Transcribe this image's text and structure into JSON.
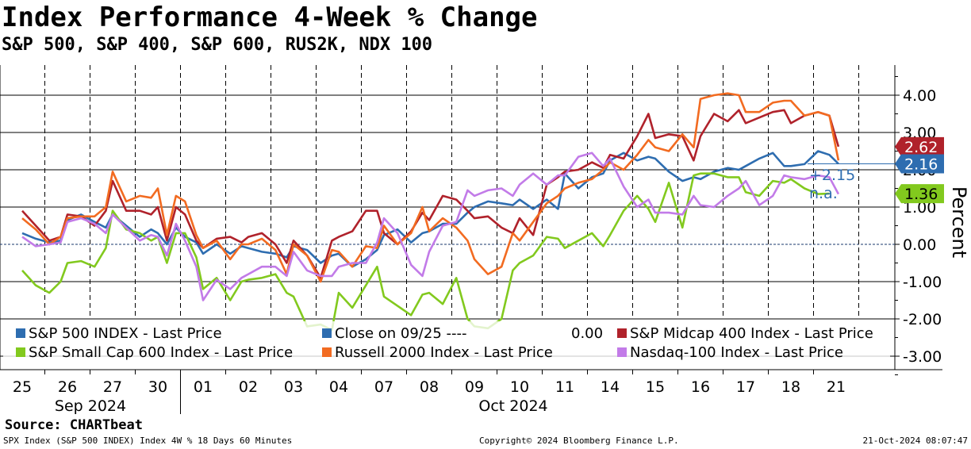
{
  "title": "Index Performance 4-Week % Change",
  "subtitle": "S&P 500, S&P 400, S&P 600, RUS2K, NDX 100",
  "source": "Source: CHARTbeat",
  "footer": {
    "left": "SPX Index (S&P 500 INDEX) Index 4W % 18 Days 60 Minutes",
    "center": "Copyright© 2024 Bloomberg Finance L.P.",
    "right": "21-Oct-2024 08:07:47"
  },
  "chart_data": {
    "type": "line",
    "ylabel": "Percent",
    "ylim": [
      -3.3,
      4.5
    ],
    "yticks": [
      -3,
      -2,
      -1,
      0,
      1,
      2,
      3,
      4
    ],
    "ytick_labels": [
      "-3.00",
      "-2.00",
      "-1.00",
      "0.00",
      "1.00",
      "2.00",
      "3.00",
      "4.00"
    ],
    "x_day_labels": [
      "25",
      "26",
      "27",
      "30",
      "01",
      "02",
      "03",
      "04",
      "07",
      "08",
      "09",
      "10",
      "11",
      "14",
      "15",
      "16",
      "17",
      "18",
      "21"
    ],
    "x_month_labels": [
      "Sep 2024",
      "Oct 2024"
    ],
    "grid": true,
    "legend_position": "bottom",
    "reference_line": {
      "label": "Close on 09/25 ----",
      "value": 0.0,
      "value_label": "0.00"
    },
    "annotations": [
      {
        "text": "+2.15",
        "color": "#2e6db0"
      },
      {
        "text": "n.a.",
        "color": "#2e6db0"
      }
    ],
    "last_value_tags": [
      {
        "text": "2.62",
        "value": 2.62,
        "color": "#b0222b"
      },
      {
        "text": "2.16",
        "value": 2.16,
        "color": "#2e6db0"
      },
      {
        "text": "1.36",
        "value": 1.36,
        "color": "#82c91e"
      }
    ],
    "series": [
      {
        "name": "S&P 500 INDEX - Last Price",
        "color": "#2e6db0",
        "x": [
          0,
          0.3,
          0.6,
          0.85,
          1,
          1.3,
          1.6,
          1.85,
          2,
          2.3,
          2.6,
          2.85,
          3,
          3.2,
          3.4,
          3.6,
          3.85,
          4,
          4.3,
          4.6,
          4.85,
          5,
          5.3,
          5.6,
          5.85,
          6,
          6.3,
          6.6,
          6.85,
          7,
          7.3,
          7.6,
          7.85,
          8,
          8.3,
          8.6,
          8.85,
          9,
          9.3,
          9.6,
          9.85,
          10,
          10.3,
          10.6,
          10.85,
          11,
          11.3,
          11.6,
          11.85,
          12,
          12.3,
          12.6,
          12.85,
          13,
          13.3,
          13.6,
          13.85,
          14,
          14.3,
          14.6,
          14.85,
          15,
          15.3,
          15.6,
          15.85,
          16,
          16.3,
          16.6,
          16.85,
          17,
          17.3,
          17.6,
          17.85,
          18.05
        ],
        "values": [
          0.3,
          0.15,
          0.05,
          0.1,
          0.65,
          0.8,
          0.6,
          0.45,
          0.8,
          0.5,
          0.2,
          0.4,
          0.3,
          0.0,
          0.45,
          0.2,
          0.05,
          -0.25,
          0.0,
          -0.25,
          -0.05,
          -0.1,
          -0.2,
          -0.25,
          -0.35,
          -0.05,
          -0.15,
          -0.5,
          -0.3,
          -0.25,
          -0.6,
          -0.4,
          -0.15,
          0.25,
          0.4,
          0.05,
          0.3,
          0.35,
          0.55,
          0.55,
          0.85,
          1.0,
          1.15,
          1.1,
          1.05,
          1.2,
          0.95,
          1.2,
          0.95,
          1.9,
          1.5,
          1.8,
          1.9,
          2.25,
          2.45,
          2.25,
          2.35,
          2.3,
          1.95,
          1.7,
          1.8,
          1.75,
          1.95,
          2.05,
          2.0,
          2.1,
          2.3,
          2.45,
          2.1,
          2.1,
          2.15,
          2.5,
          2.4,
          2.16
        ]
      },
      {
        "name": "S&P Midcap 400 Index - Last Price",
        "color": "#b0222b",
        "x": [
          0,
          0.3,
          0.6,
          0.85,
          1,
          1.3,
          1.6,
          1.85,
          2,
          2.3,
          2.6,
          2.85,
          3,
          3.2,
          3.4,
          3.6,
          3.85,
          4,
          4.3,
          4.6,
          4.85,
          5,
          5.3,
          5.6,
          5.85,
          6,
          6.3,
          6.6,
          6.85,
          7,
          7.3,
          7.6,
          7.85,
          8,
          8.3,
          8.6,
          8.85,
          9,
          9.3,
          9.6,
          9.85,
          10,
          10.3,
          10.6,
          10.85,
          11,
          11.3,
          11.6,
          11.85,
          12,
          12.3,
          12.6,
          12.85,
          13,
          13.3,
          13.6,
          13.85,
          14,
          14.3,
          14.6,
          14.85,
          15,
          15.3,
          15.6,
          15.85,
          16,
          16.3,
          16.6,
          16.85,
          17,
          17.3,
          17.6,
          17.85,
          18.05
        ],
        "values": [
          0.9,
          0.5,
          0.1,
          0.2,
          0.8,
          0.75,
          0.5,
          0.9,
          1.7,
          0.9,
          0.9,
          0.8,
          1.0,
          0.1,
          1.0,
          0.8,
          0.1,
          -0.1,
          0.15,
          0.2,
          0.05,
          0.2,
          0.3,
          0.0,
          -0.5,
          0.1,
          -0.3,
          -0.9,
          0.1,
          0.2,
          0.35,
          0.9,
          0.9,
          0.3,
          0.0,
          0.35,
          0.85,
          0.65,
          1.3,
          1.2,
          0.9,
          0.7,
          0.75,
          0.45,
          0.3,
          0.7,
          0.25,
          1.6,
          1.8,
          1.95,
          2.0,
          2.2,
          2.05,
          2.4,
          2.3,
          2.9,
          3.5,
          2.85,
          2.95,
          2.9,
          2.25,
          2.9,
          3.5,
          3.3,
          3.6,
          3.25,
          3.4,
          3.55,
          3.6,
          3.25,
          3.45,
          3.55,
          3.45,
          2.62
        ]
      },
      {
        "name": "S&P Small Cap 600 Index - Last Price",
        "color": "#82c91e",
        "x": [
          0,
          0.3,
          0.6,
          0.85,
          1,
          1.3,
          1.6,
          1.85,
          2,
          2.3,
          2.6,
          2.85,
          3,
          3.2,
          3.4,
          3.6,
          3.85,
          4,
          4.3,
          4.6,
          4.85,
          5,
          5.3,
          5.6,
          5.85,
          6,
          6.3,
          6.6,
          6.85,
          7,
          7.3,
          7.6,
          7.85,
          8,
          8.3,
          8.6,
          8.85,
          9,
          9.3,
          9.6,
          9.85,
          10,
          10.3,
          10.6,
          10.85,
          11,
          11.3,
          11.6,
          11.85,
          12,
          12.3,
          12.6,
          12.85,
          13,
          13.3,
          13.6,
          13.85,
          14,
          14.3,
          14.6,
          14.85,
          15,
          15.3,
          15.6,
          15.85,
          16,
          16.3,
          16.6,
          16.85,
          17,
          17.3,
          17.6,
          17.85
        ],
        "values": [
          -0.7,
          -1.1,
          -1.3,
          -1.0,
          -0.5,
          -0.45,
          -0.6,
          -0.1,
          0.9,
          0.4,
          0.3,
          0.1,
          0.2,
          -0.5,
          0.3,
          0.3,
          -0.35,
          -1.2,
          -0.9,
          -1.5,
          -1.0,
          -0.95,
          -0.9,
          -0.8,
          -1.3,
          -1.4,
          -2.2,
          -2.15,
          -2.3,
          -1.3,
          -1.7,
          -1.1,
          -0.6,
          -1.4,
          -1.65,
          -1.9,
          -1.35,
          -1.3,
          -1.6,
          -0.9,
          -2.0,
          -2.2,
          -2.25,
          -2.0,
          -0.7,
          -0.5,
          -0.3,
          0.2,
          0.15,
          -0.1,
          0.1,
          0.3,
          -0.05,
          0.25,
          0.9,
          1.3,
          0.95,
          0.6,
          1.65,
          0.45,
          1.85,
          1.9,
          1.9,
          1.8,
          1.8,
          1.4,
          1.3,
          1.7,
          1.65,
          1.75,
          1.5,
          1.35,
          1.36
        ]
      },
      {
        "name": "Russell 2000 Index - Last Price",
        "color": "#f26b21",
        "x": [
          0,
          0.3,
          0.6,
          0.85,
          1,
          1.3,
          1.6,
          1.85,
          2,
          2.3,
          2.6,
          2.85,
          3,
          3.2,
          3.4,
          3.6,
          3.85,
          4,
          4.3,
          4.6,
          4.85,
          5,
          5.3,
          5.6,
          5.85,
          6,
          6.3,
          6.6,
          6.85,
          7,
          7.3,
          7.6,
          7.85,
          8,
          8.3,
          8.6,
          8.85,
          9,
          9.3,
          9.6,
          9.85,
          10,
          10.3,
          10.6,
          10.85,
          11,
          11.3,
          11.6,
          11.85,
          12,
          12.3,
          12.6,
          12.85,
          13,
          13.3,
          13.6,
          13.85,
          14,
          14.3,
          14.6,
          14.85,
          15,
          15.3,
          15.6,
          15.85,
          16,
          16.3,
          16.6,
          16.85,
          17,
          17.3,
          17.6,
          17.85,
          18.05
        ],
        "values": [
          0.7,
          0.4,
          0.0,
          0.2,
          0.7,
          0.75,
          0.75,
          1.0,
          1.95,
          1.15,
          1.3,
          1.25,
          1.5,
          0.25,
          1.3,
          1.15,
          0.25,
          -0.1,
          0.1,
          -0.4,
          0.0,
          0.0,
          0.15,
          -0.15,
          -0.8,
          0.0,
          -0.3,
          -1.0,
          -0.15,
          -0.2,
          -0.6,
          -0.05,
          -0.1,
          0.5,
          0.0,
          0.3,
          1.0,
          0.35,
          0.7,
          0.45,
          0.1,
          -0.4,
          -0.8,
          -0.6,
          0.3,
          0.1,
          0.6,
          1.1,
          1.3,
          1.5,
          1.65,
          1.75,
          2.0,
          2.2,
          2.0,
          2.4,
          2.8,
          2.6,
          2.5,
          2.95,
          2.6,
          3.9,
          4.0,
          4.05,
          4.0,
          3.55,
          3.55,
          3.8,
          3.85,
          3.85,
          3.45,
          3.55,
          3.45,
          2.25
        ]
      },
      {
        "name": "Nasdaq-100 Index - Last Price",
        "color": "#c27be8",
        "x": [
          0,
          0.3,
          0.6,
          0.85,
          1,
          1.3,
          1.6,
          1.85,
          2,
          2.3,
          2.6,
          2.85,
          3,
          3.2,
          3.4,
          3.6,
          3.85,
          4,
          4.3,
          4.6,
          4.85,
          5,
          5.3,
          5.6,
          5.85,
          6,
          6.3,
          6.6,
          6.85,
          7,
          7.3,
          7.6,
          7.85,
          8,
          8.3,
          8.6,
          8.85,
          9,
          9.3,
          9.6,
          9.85,
          10,
          10.3,
          10.6,
          10.85,
          11,
          11.3,
          11.6,
          11.85,
          12,
          12.3,
          12.6,
          12.85,
          13,
          13.3,
          13.6,
          13.85,
          14,
          14.3,
          14.6,
          14.85,
          15,
          15.3,
          15.6,
          15.85,
          16,
          16.3,
          16.6,
          16.85,
          17,
          17.3,
          17.6,
          17.85,
          18.05
        ],
        "values": [
          0.2,
          -0.05,
          0.0,
          0.05,
          0.6,
          0.7,
          0.55,
          0.3,
          0.8,
          0.45,
          0.1,
          0.25,
          0.2,
          -0.3,
          0.55,
          0.1,
          -0.6,
          -1.5,
          -0.95,
          -1.2,
          -0.9,
          -0.8,
          -0.6,
          -0.6,
          -0.85,
          -0.2,
          -0.7,
          -0.85,
          -0.85,
          -0.6,
          -0.5,
          -0.5,
          0.05,
          0.7,
          0.3,
          -0.55,
          -0.85,
          -0.2,
          0.5,
          0.6,
          1.45,
          1.3,
          1.45,
          1.5,
          1.3,
          1.6,
          1.9,
          1.6,
          1.85,
          1.85,
          2.35,
          2.45,
          2.1,
          2.3,
          1.55,
          1.0,
          1.2,
          0.85,
          0.85,
          0.8,
          1.3,
          1.05,
          1.0,
          1.3,
          1.5,
          1.7,
          1.05,
          1.3,
          1.85,
          1.8,
          1.75,
          1.85,
          1.8,
          1.35
        ]
      }
    ]
  }
}
